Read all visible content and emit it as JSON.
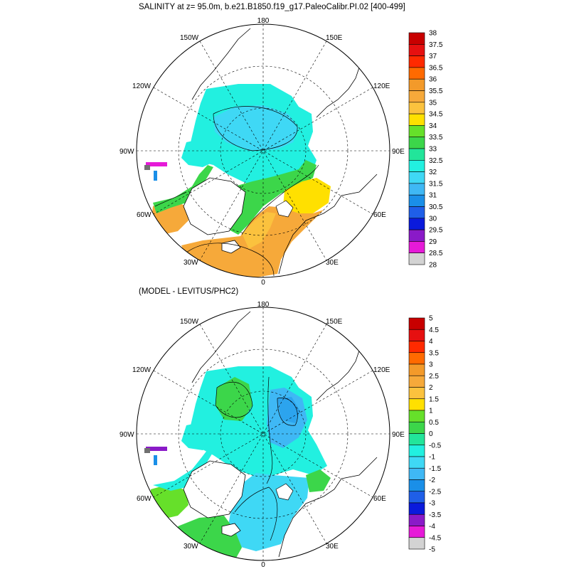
{
  "top_panel": {
    "title": "SALINITY at z=  95.0m, b.e21.B1850.f19_g17.PaleoCalibr.PI.02 [400-499]",
    "lon_labels": {
      "l180": "180",
      "l150E": "150E",
      "l120E": "120E",
      "l90E": "90E",
      "l60E": "60E",
      "l30E": "30E",
      "l0": "0",
      "l30W": "30W",
      "l60W": "60W",
      "l90W": "90W",
      "l120W": "120W",
      "l150W": "150W"
    },
    "colorbar": {
      "labels": [
        "38",
        "37.5",
        "37",
        "36.5",
        "36",
        "35.5",
        "35",
        "34.5",
        "34",
        "33.5",
        "33",
        "32.5",
        "32",
        "31.5",
        "31",
        "30.5",
        "30",
        "29.5",
        "29",
        "28.5",
        "28"
      ],
      "colors": [
        "#c80000",
        "#e61010",
        "#ff2a00",
        "#ff6a00",
        "#f39a2a",
        "#f6a93a",
        "#fbc23e",
        "#ffe000",
        "#66e02a",
        "#3cd64a",
        "#22e59a",
        "#22f0e0",
        "#3fd8f5",
        "#3fb8f5",
        "#1a8fe8",
        "#1f5fe8",
        "#0a1adc",
        "#8a1ac8",
        "#e61ad8",
        "#d3d3d3",
        "#707070"
      ]
    }
  },
  "bottom_panel": {
    "title": "(MODEL - LEVITUS/PHC2)",
    "lon_labels": {
      "l180": "180",
      "l150E": "150E",
      "l120E": "120E",
      "l90E": "90E",
      "l60E": "60E",
      "l30E": "30E",
      "l0": "0",
      "l30W": "30W",
      "l60W": "60W",
      "l90W": "90W",
      "l120W": "120W",
      "l150W": "150W"
    },
    "colorbar": {
      "labels": [
        "5",
        "4.5",
        "4",
        "3.5",
        "3",
        "2.5",
        "2",
        "1.5",
        "1",
        "0.5",
        "0",
        "-0.5",
        "-1",
        "-1.5",
        "-2",
        "-2.5",
        "-3",
        "-3.5",
        "-4",
        "-4.5",
        "-5"
      ],
      "colors": [
        "#c80000",
        "#e61010",
        "#ff2a00",
        "#ff6a00",
        "#f39a2a",
        "#f6a93a",
        "#fbc23e",
        "#ffe000",
        "#66e02a",
        "#3cd64a",
        "#22e59a",
        "#22f0e0",
        "#3fd8f5",
        "#3fb8f5",
        "#1a8fe8",
        "#1f5fe8",
        "#0a1adc",
        "#8a1ac8",
        "#e61ad8",
        "#d3d3d3",
        "#707070"
      ]
    }
  }
}
